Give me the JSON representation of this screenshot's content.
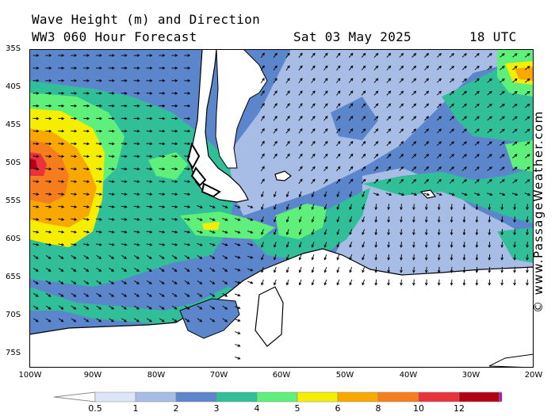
{
  "header": {
    "title": "Wave Height (m) and Direction",
    "model": "WW3 060 Hour Forecast",
    "date": "Sat 03 May 2025",
    "time": "18 UTC"
  },
  "credit": "© www.PassageWeather.com",
  "lat_labels": [
    "35S",
    "40S",
    "45S",
    "50S",
    "55S",
    "60S",
    "65S",
    "70S",
    "75S"
  ],
  "lon_labels": [
    "100W",
    "90W",
    "80W",
    "70W",
    "60W",
    "50W",
    "40W",
    "30W",
    "20W"
  ],
  "legend": {
    "labels": [
      "0.5",
      "1",
      "2",
      "3",
      "4",
      "5",
      "6",
      "8",
      "10",
      "12"
    ],
    "colors": [
      "#dde6f7",
      "#a7bde6",
      "#5b86cc",
      "#30bf98",
      "#5ef07a",
      "#f5ee00",
      "#f9a800",
      "#f57d1e",
      "#e8323c",
      "#b40016",
      "#c000c0"
    ]
  },
  "colors": {
    "land": "#ffffff",
    "coast": "#000000",
    "arrow": "#000000"
  }
}
